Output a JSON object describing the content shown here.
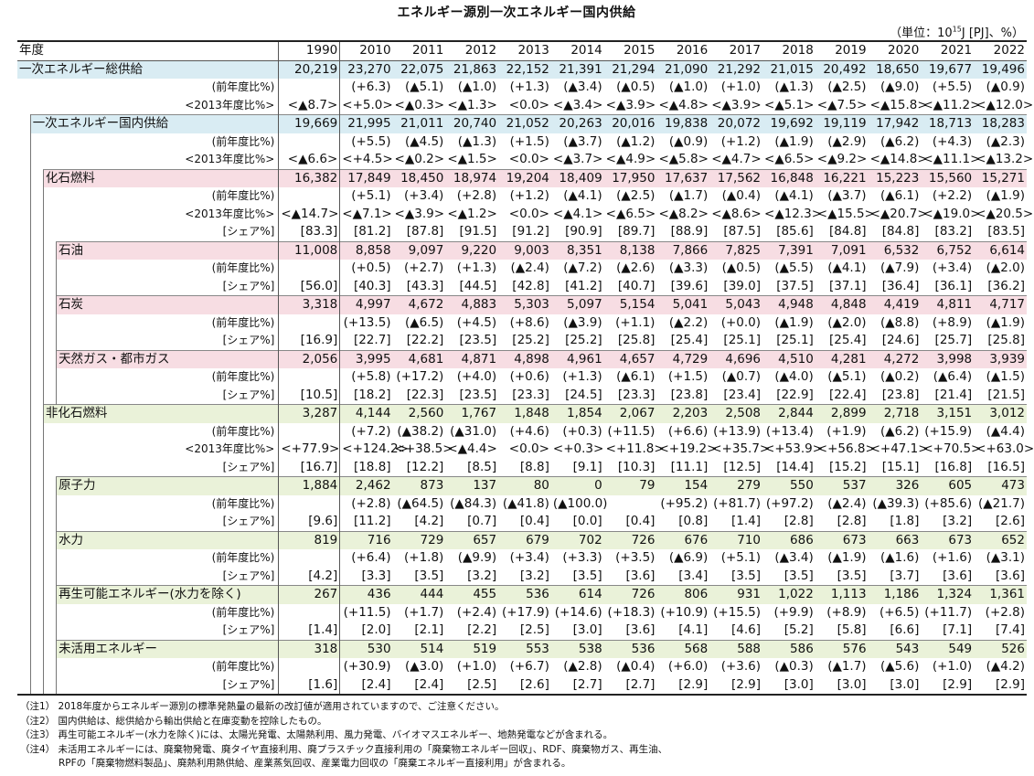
{
  "title": "エネルギー源別一次エネルギー国内供給",
  "unit_prefix": "（単位：10",
  "unit_exp": "15",
  "unit_suffix": "J [PJ]、%）",
  "header": {
    "label": "年度",
    "years": [
      "1990",
      "2010",
      "2011",
      "2012",
      "2013",
      "2014",
      "2015",
      "2016",
      "2017",
      "2018",
      "2019",
      "2020",
      "2021",
      "2022"
    ]
  },
  "rows": [
    {
      "level": 0,
      "bg": "blue",
      "kind": "main",
      "label": "一次エネルギー総供給",
      "values": [
        "20,219",
        "23,270",
        "22,075",
        "21,863",
        "22,152",
        "21,391",
        "21,294",
        "21,090",
        "21,292",
        "21,015",
        "20,492",
        "18,650",
        "19,677",
        "19,496"
      ]
    },
    {
      "level": 0,
      "kind": "sub",
      "label": "(前年度比%)",
      "values": [
        "",
        "(+6.3)",
        "(▲5.1)",
        "(▲1.0)",
        "(+1.3)",
        "(▲3.4)",
        "(▲0.5)",
        "(▲1.0)",
        "(+1.0)",
        "(▲1.3)",
        "(▲2.5)",
        "(▲9.0)",
        "(+5.5)",
        "(▲0.9)"
      ]
    },
    {
      "level": 0,
      "kind": "sub",
      "small": true,
      "label": "<2013年度比%>",
      "values": [
        "<▲8.7>",
        "<+5.0>",
        "<▲0.3>",
        "<▲1.3>",
        "<0.0>",
        "<▲3.4>",
        "<▲3.9>",
        "<▲4.8>",
        "<▲3.9>",
        "<▲5.1>",
        "<▲7.5>",
        "<▲15.8>",
        "<▲11.2>",
        "<▲12.0>"
      ]
    },
    {
      "level": 1,
      "bg": "blue",
      "kind": "main",
      "label": "一次エネルギー国内供給",
      "values": [
        "19,669",
        "21,995",
        "21,011",
        "20,740",
        "21,052",
        "20,263",
        "20,016",
        "19,838",
        "20,072",
        "19,692",
        "19,119",
        "17,942",
        "18,713",
        "18,283"
      ]
    },
    {
      "level": 1,
      "kind": "sub",
      "label": "(前年度比%)",
      "values": [
        "",
        "(+5.5)",
        "(▲4.5)",
        "(▲1.3)",
        "(+1.5)",
        "(▲3.7)",
        "(▲1.2)",
        "(▲0.9)",
        "(+1.2)",
        "(▲1.9)",
        "(▲2.9)",
        "(▲6.2)",
        "(+4.3)",
        "(▲2.3)"
      ]
    },
    {
      "level": 1,
      "kind": "sub",
      "small": true,
      "label": "<2013年度比%>",
      "values": [
        "<▲6.6>",
        "<+4.5>",
        "<▲0.2>",
        "<▲1.5>",
        "<0.0>",
        "<▲3.7>",
        "<▲4.9>",
        "<▲5.8>",
        "<▲4.7>",
        "<▲6.5>",
        "<▲9.2>",
        "<▲14.8>",
        "<▲11.1>",
        "<▲13.2>"
      ]
    },
    {
      "level": 2,
      "bg": "pink",
      "kind": "main",
      "label": "化石燃料",
      "values": [
        "16,382",
        "17,849",
        "18,450",
        "18,974",
        "19,204",
        "18,409",
        "17,950",
        "17,637",
        "17,562",
        "16,848",
        "16,221",
        "15,223",
        "15,560",
        "15,271"
      ]
    },
    {
      "level": 2,
      "kind": "sub",
      "label": "(前年度比%)",
      "values": [
        "",
        "(+5.1)",
        "(+3.4)",
        "(+2.8)",
        "(+1.2)",
        "(▲4.1)",
        "(▲2.5)",
        "(▲1.7)",
        "(▲0.4)",
        "(▲4.1)",
        "(▲3.7)",
        "(▲6.1)",
        "(+2.2)",
        "(▲1.9)"
      ]
    },
    {
      "level": 2,
      "kind": "sub",
      "small": true,
      "label": "<2013年度比%>",
      "values": [
        "<▲14.7>",
        "<▲7.1>",
        "<▲3.9>",
        "<▲1.2>",
        "<0.0>",
        "<▲4.1>",
        "<▲6.5>",
        "<▲8.2>",
        "<▲8.6>",
        "<▲12.3>",
        "<▲15.5>",
        "<▲20.7>",
        "<▲19.0>",
        "<▲20.5>"
      ]
    },
    {
      "level": 2,
      "kind": "sub",
      "label": "[シェア%]",
      "values": [
        "[83.3]",
        "[81.2]",
        "[87.8]",
        "[91.5]",
        "[91.2]",
        "[90.9]",
        "[89.7]",
        "[88.9]",
        "[87.5]",
        "[85.6]",
        "[84.8]",
        "[84.8]",
        "[83.2]",
        "[83.5]"
      ]
    },
    {
      "level": 3,
      "bg": "pink",
      "kind": "main",
      "label": "石油",
      "values": [
        "11,008",
        "8,858",
        "9,097",
        "9,220",
        "9,003",
        "8,351",
        "8,138",
        "7,866",
        "7,825",
        "7,391",
        "7,091",
        "6,532",
        "6,752",
        "6,614"
      ]
    },
    {
      "level": 3,
      "kind": "sub",
      "label": "(前年度比%)",
      "values": [
        "",
        "(+0.5)",
        "(+2.7)",
        "(+1.3)",
        "(▲2.4)",
        "(▲7.2)",
        "(▲2.6)",
        "(▲3.3)",
        "(▲0.5)",
        "(▲5.5)",
        "(▲4.1)",
        "(▲7.9)",
        "(+3.4)",
        "(▲2.0)"
      ]
    },
    {
      "level": 3,
      "kind": "sub",
      "label": "[シェア%]",
      "values": [
        "[56.0]",
        "[40.3]",
        "[43.3]",
        "[44.5]",
        "[42.8]",
        "[41.2]",
        "[40.7]",
        "[39.6]",
        "[39.0]",
        "[37.5]",
        "[37.1]",
        "[36.4]",
        "[36.1]",
        "[36.2]"
      ]
    },
    {
      "level": 3,
      "bg": "pink",
      "kind": "main",
      "label": "石炭",
      "values": [
        "3,318",
        "4,997",
        "4,672",
        "4,883",
        "5,303",
        "5,097",
        "5,154",
        "5,041",
        "5,043",
        "4,948",
        "4,848",
        "4,419",
        "4,811",
        "4,717"
      ]
    },
    {
      "level": 3,
      "kind": "sub",
      "label": "(前年度比%)",
      "values": [
        "",
        "(+13.5)",
        "(▲6.5)",
        "(+4.5)",
        "(+8.6)",
        "(▲3.9)",
        "(+1.1)",
        "(▲2.2)",
        "(+0.0)",
        "(▲1.9)",
        "(▲2.0)",
        "(▲8.8)",
        "(+8.9)",
        "(▲1.9)"
      ]
    },
    {
      "level": 3,
      "kind": "sub",
      "label": "[シェア%]",
      "values": [
        "[16.9]",
        "[22.7]",
        "[22.2]",
        "[23.5]",
        "[25.2]",
        "[25.2]",
        "[25.8]",
        "[25.4]",
        "[25.1]",
        "[25.1]",
        "[25.4]",
        "[24.6]",
        "[25.7]",
        "[25.8]"
      ]
    },
    {
      "level": 3,
      "bg": "pink",
      "kind": "main",
      "label": "天然ガス・都市ガス",
      "values": [
        "2,056",
        "3,995",
        "4,681",
        "4,871",
        "4,898",
        "4,961",
        "4,657",
        "4,729",
        "4,696",
        "4,510",
        "4,281",
        "4,272",
        "3,998",
        "3,939"
      ]
    },
    {
      "level": 3,
      "kind": "sub",
      "label": "(前年度比%)",
      "values": [
        "",
        "(+5.8)",
        "(+17.2)",
        "(+4.0)",
        "(+0.6)",
        "(+1.3)",
        "(▲6.1)",
        "(+1.5)",
        "(▲0.7)",
        "(▲4.0)",
        "(▲5.1)",
        "(▲0.2)",
        "(▲6.4)",
        "(▲1.5)"
      ]
    },
    {
      "level": 3,
      "kind": "sub",
      "label": "[シェア%]",
      "values": [
        "[10.5]",
        "[18.2]",
        "[22.3]",
        "[23.5]",
        "[23.3]",
        "[24.5]",
        "[23.3]",
        "[23.8]",
        "[23.4]",
        "[22.9]",
        "[22.4]",
        "[23.8]",
        "[21.4]",
        "[21.5]"
      ]
    },
    {
      "level": 2,
      "bg": "green",
      "kind": "main",
      "label": "非化石燃料",
      "values": [
        "3,287",
        "4,144",
        "2,560",
        "1,767",
        "1,848",
        "1,854",
        "2,067",
        "2,203",
        "2,508",
        "2,844",
        "2,899",
        "2,718",
        "3,151",
        "3,012"
      ]
    },
    {
      "level": 2,
      "kind": "sub",
      "label": "(前年度比%)",
      "values": [
        "",
        "(+7.2)",
        "(▲38.2)",
        "(▲31.0)",
        "(+4.6)",
        "(+0.3)",
        "(+11.5)",
        "(+6.6)",
        "(+13.9)",
        "(+13.4)",
        "(+1.9)",
        "(▲6.2)",
        "(+15.9)",
        "(▲4.4)"
      ]
    },
    {
      "level": 2,
      "kind": "sub",
      "small": true,
      "label": "<2013年度比%>",
      "values": [
        "<+77.9>",
        "<+124.2>",
        "<+38.5>",
        "<▲4.4>",
        "<0.0>",
        "<+0.3>",
        "<+11.8>",
        "<+19.2>",
        "<+35.7>",
        "<+53.9>",
        "<+56.8>",
        "<+47.1>",
        "<+70.5>",
        "<+63.0>"
      ]
    },
    {
      "level": 2,
      "kind": "sub",
      "label": "[シェア%]",
      "values": [
        "[16.7]",
        "[18.8]",
        "[12.2]",
        "[8.5]",
        "[8.8]",
        "[9.1]",
        "[10.3]",
        "[11.1]",
        "[12.5]",
        "[14.4]",
        "[15.2]",
        "[15.1]",
        "[16.8]",
        "[16.5]"
      ]
    },
    {
      "level": 3,
      "bg": "green",
      "kind": "main",
      "label": "原子力",
      "values": [
        "1,884",
        "2,462",
        "873",
        "137",
        "80",
        "0",
        "79",
        "154",
        "279",
        "550",
        "537",
        "326",
        "605",
        "473"
      ]
    },
    {
      "level": 3,
      "kind": "sub",
      "label": "(前年度比%)",
      "values": [
        "",
        "(+2.8)",
        "(▲64.5)",
        "(▲84.3)",
        "(▲41.8)",
        "(▲100.0)",
        "",
        "(+95.2)",
        "(+81.7)",
        "(+97.2)",
        "(▲2.4)",
        "(▲39.3)",
        "(+85.6)",
        "(▲21.7)"
      ]
    },
    {
      "level": 3,
      "kind": "sub",
      "label": "[シェア%]",
      "values": [
        "[9.6]",
        "[11.2]",
        "[4.2]",
        "[0.7]",
        "[0.4]",
        "[0.0]",
        "[0.4]",
        "[0.8]",
        "[1.4]",
        "[2.8]",
        "[2.8]",
        "[1.8]",
        "[3.2]",
        "[2.6]"
      ]
    },
    {
      "level": 3,
      "bg": "green",
      "kind": "main",
      "label": "水力",
      "values": [
        "819",
        "716",
        "729",
        "657",
        "679",
        "702",
        "726",
        "676",
        "710",
        "686",
        "673",
        "663",
        "673",
        "652"
      ]
    },
    {
      "level": 3,
      "kind": "sub",
      "label": "(前年度比%)",
      "values": [
        "",
        "(+6.4)",
        "(+1.8)",
        "(▲9.9)",
        "(+3.4)",
        "(+3.3)",
        "(+3.5)",
        "(▲6.9)",
        "(+5.1)",
        "(▲3.4)",
        "(▲1.9)",
        "(▲1.6)",
        "(+1.6)",
        "(▲3.1)"
      ]
    },
    {
      "level": 3,
      "kind": "sub",
      "label": "[シェア%]",
      "values": [
        "[4.2]",
        "[3.3]",
        "[3.5]",
        "[3.2]",
        "[3.2]",
        "[3.5]",
        "[3.6]",
        "[3.4]",
        "[3.5]",
        "[3.5]",
        "[3.5]",
        "[3.7]",
        "[3.6]",
        "[3.6]"
      ]
    },
    {
      "level": 3,
      "bg": "green",
      "kind": "main",
      "label": "再生可能エネルギー(水力を除く)",
      "values": [
        "267",
        "436",
        "444",
        "455",
        "536",
        "614",
        "726",
        "806",
        "931",
        "1,022",
        "1,113",
        "1,186",
        "1,324",
        "1,361"
      ]
    },
    {
      "level": 3,
      "kind": "sub",
      "label": "(前年度比%)",
      "values": [
        "",
        "(+11.5)",
        "(+1.7)",
        "(+2.4)",
        "(+17.9)",
        "(+14.6)",
        "(+18.3)",
        "(+10.9)",
        "(+15.5)",
        "(+9.9)",
        "(+8.9)",
        "(+6.5)",
        "(+11.7)",
        "(+2.8)"
      ]
    },
    {
      "level": 3,
      "kind": "sub",
      "label": "[シェア%]",
      "values": [
        "[1.4]",
        "[2.0]",
        "[2.1]",
        "[2.2]",
        "[2.5]",
        "[3.0]",
        "[3.6]",
        "[4.1]",
        "[4.6]",
        "[5.2]",
        "[5.8]",
        "[6.6]",
        "[7.1]",
        "[7.4]"
      ]
    },
    {
      "level": 3,
      "bg": "green",
      "kind": "main",
      "label": "未活用エネルギー",
      "values": [
        "318",
        "530",
        "514",
        "519",
        "553",
        "538",
        "536",
        "568",
        "588",
        "586",
        "576",
        "543",
        "549",
        "526"
      ]
    },
    {
      "level": 3,
      "kind": "sub",
      "label": "(前年度比%)",
      "values": [
        "",
        "(+30.9)",
        "(▲3.0)",
        "(+1.0)",
        "(+6.7)",
        "(▲2.8)",
        "(▲0.4)",
        "(+6.0)",
        "(+3.6)",
        "(▲0.3)",
        "(▲1.7)",
        "(▲5.6)",
        "(+1.0)",
        "(▲4.2)"
      ]
    },
    {
      "level": 3,
      "kind": "sub",
      "label": "[シェア%]",
      "values": [
        "[1.6]",
        "[2.4]",
        "[2.4]",
        "[2.5]",
        "[2.6]",
        "[2.7]",
        "[2.7]",
        "[2.9]",
        "[2.9]",
        "[3.0]",
        "[3.0]",
        "[3.0]",
        "[2.9]",
        "[2.9]"
      ]
    }
  ],
  "notes": [
    "（注1） 2018年度からエネルギー源別の標準発熱量の最新の改訂値が適用されていますので、ご注意ください。",
    "（注2） 国内供給は、総供給から輸出供給と在庫変動を控除したもの。",
    "（注3） 再生可能エネルギー(水力を除く)には、太陽光発電、太陽熱利用、風力発電、バイオマスエネルギー、地熱発電などが含まれる。",
    "（注4） 未活用エネルギーには、廃棄物発電、廃タイヤ直接利用、廃プラスチック直接利用の「廃棄物エネルギー回収」、RDF、廃棄物ガス、再生油、",
    "　　　　RPFの「廃棄物燃料製品」、廃熱利用熱供給、産業蒸気回収、産業電力回収の「廃棄エネルギー直接利用」が含まれる。"
  ],
  "colors": {
    "blue": "#d9ecf3",
    "pink": "#f7dde3",
    "green": "#eaf2d9"
  }
}
